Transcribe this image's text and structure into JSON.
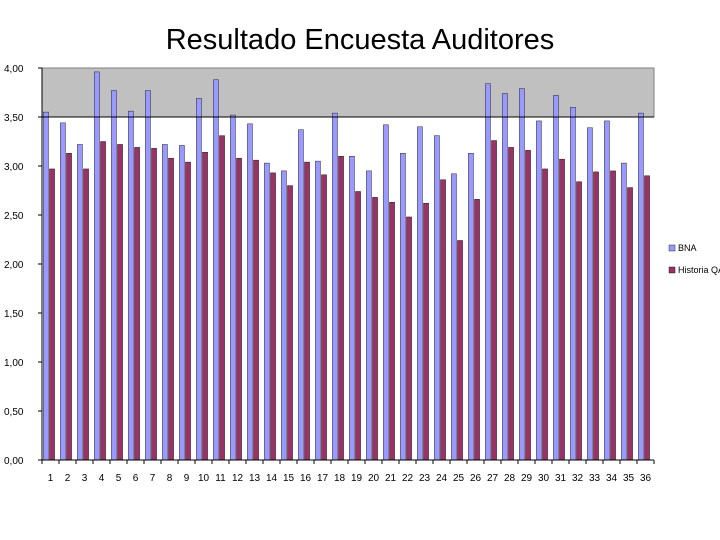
{
  "chart_data": {
    "type": "bar",
    "title": "Resultado Encuesta Auditores",
    "xlabel": "",
    "ylabel": "",
    "ylim": [
      0,
      4
    ],
    "yticks": [
      "0,00",
      "0,50",
      "1,00",
      "1,50",
      "2,00",
      "2,50",
      "3,00",
      "3,50",
      "4,00"
    ],
    "reference_line": 3.5,
    "grid": false,
    "legend_position": "right",
    "categories": [
      "1",
      "2",
      "3",
      "4",
      "5",
      "6",
      "7",
      "8",
      "9",
      "10",
      "11",
      "12",
      "13",
      "14",
      "15",
      "16",
      "17",
      "18",
      "19",
      "20",
      "21",
      "22",
      "23",
      "24",
      "25",
      "26",
      "27",
      "28",
      "29",
      "30",
      "31",
      "32",
      "33",
      "34",
      "35",
      "36"
    ],
    "series": [
      {
        "name": "BNA",
        "color": "#9999ff",
        "values": [
          3.55,
          3.44,
          3.22,
          3.96,
          3.77,
          3.56,
          3.77,
          3.22,
          3.21,
          3.69,
          3.88,
          3.52,
          3.43,
          3.03,
          2.95,
          3.37,
          3.05,
          3.54,
          3.1,
          2.95,
          3.42,
          3.13,
          3.4,
          3.31,
          2.92,
          3.13,
          3.84,
          3.74,
          3.79,
          3.46,
          3.72,
          3.6,
          3.39,
          3.46,
          3.03,
          3.54
        ]
      },
      {
        "name": "Historia QA",
        "color": "#993366",
        "values": [
          2.97,
          3.13,
          2.97,
          3.25,
          3.22,
          3.19,
          3.18,
          3.08,
          3.04,
          3.14,
          3.31,
          3.08,
          3.06,
          2.93,
          2.8,
          3.04,
          2.91,
          3.1,
          2.74,
          2.68,
          2.63,
          2.48,
          2.62,
          2.86,
          2.24,
          2.66,
          3.26,
          3.19,
          3.16,
          2.97,
          3.07,
          2.84,
          2.94,
          2.95,
          2.78,
          2.9
        ]
      }
    ]
  }
}
